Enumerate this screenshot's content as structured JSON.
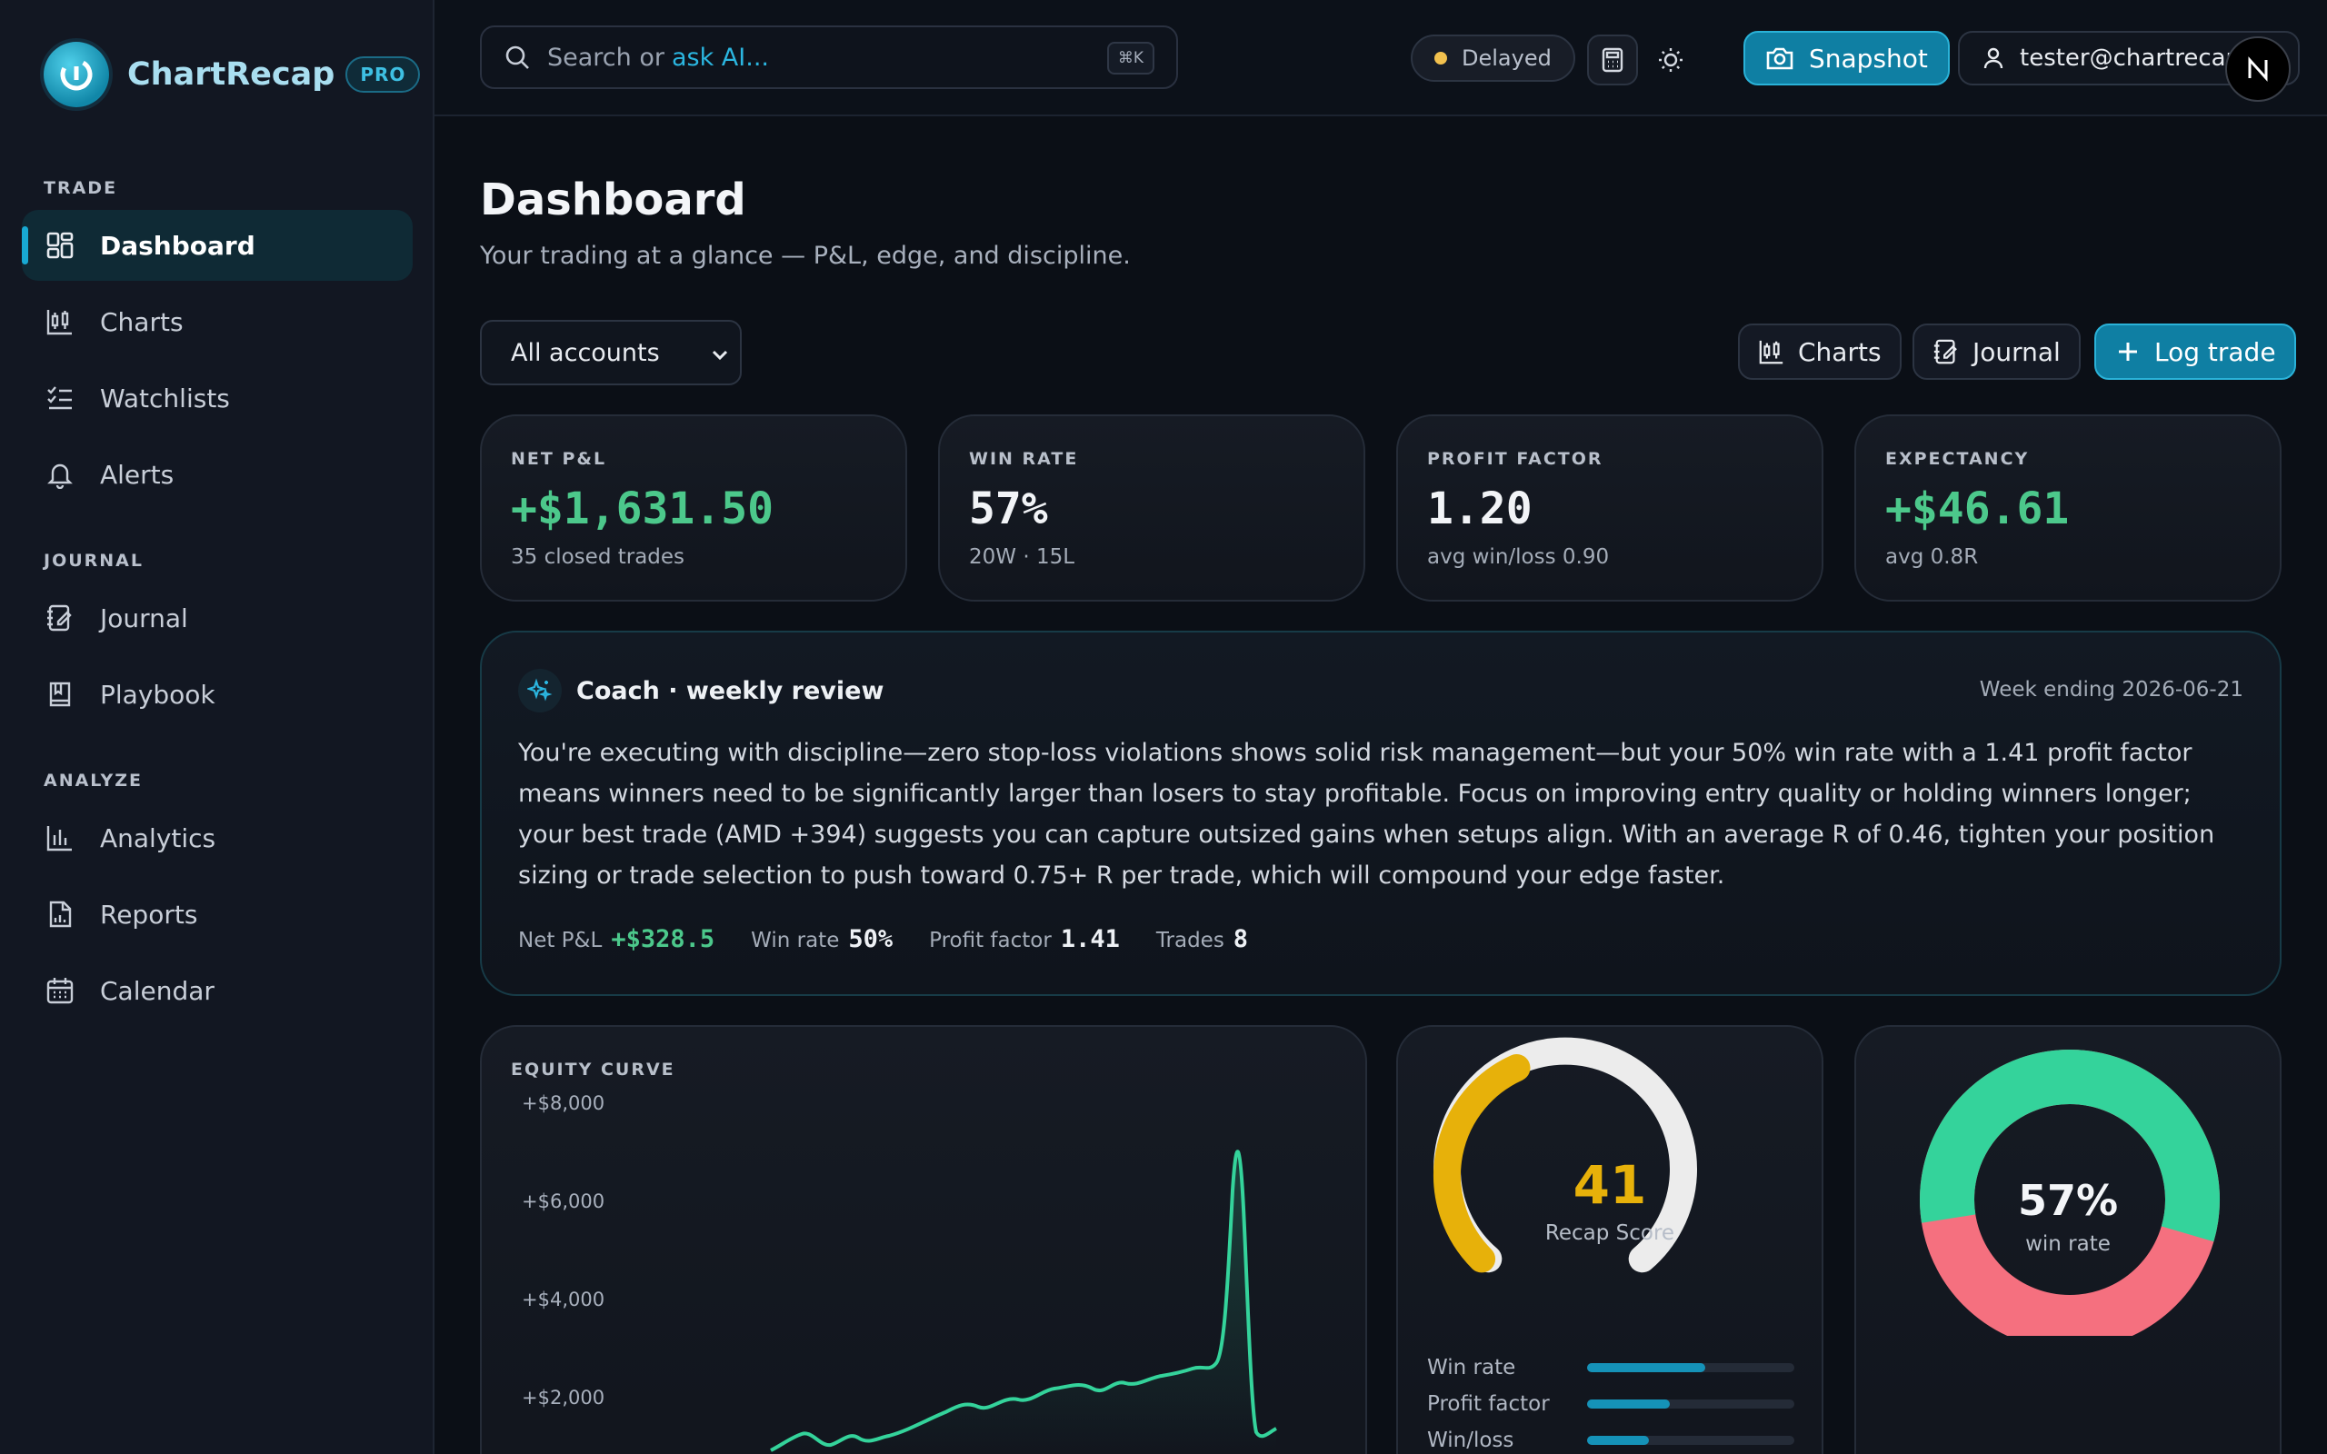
{
  "brand": {
    "name": "ChartRecap",
    "badge": "PRO"
  },
  "sidebar": {
    "sections": [
      {
        "title": "TRADE",
        "items": [
          {
            "label": "Dashboard",
            "icon": "dashboard-icon",
            "active": true
          },
          {
            "label": "Charts",
            "icon": "candlestick-icon"
          },
          {
            "label": "Watchlists",
            "icon": "checklist-icon"
          },
          {
            "label": "Alerts",
            "icon": "bell-icon"
          }
        ]
      },
      {
        "title": "JOURNAL",
        "items": [
          {
            "label": "Journal",
            "icon": "notebook-icon"
          },
          {
            "label": "Playbook",
            "icon": "book-icon"
          }
        ]
      },
      {
        "title": "ANALYZE",
        "items": [
          {
            "label": "Analytics",
            "icon": "bar-chart-icon"
          },
          {
            "label": "Reports",
            "icon": "report-icon"
          },
          {
            "label": "Calendar",
            "icon": "calendar-icon"
          }
        ]
      }
    ]
  },
  "topbar": {
    "search_prefix": "Search or",
    "search_ai": "ask AI...",
    "search_shortcut": "⌘K",
    "status": "Delayed",
    "snapshot_label": "Snapshot",
    "user_email": "tester@chartrecap.io",
    "avatar_letter": "N"
  },
  "page": {
    "title": "Dashboard",
    "subtitle": "Your trading at a glance — P&L, edge, and discipline.",
    "account_select": "All accounts",
    "actions": {
      "charts": "Charts",
      "journal": "Journal",
      "log_trade": "Log trade"
    }
  },
  "kpis": [
    {
      "label": "NET P&L",
      "value": "+$1,631.50",
      "sub": "35 closed trades",
      "positive": true
    },
    {
      "label": "WIN RATE",
      "value": "57%",
      "sub": "20W · 15L",
      "positive": false
    },
    {
      "label": "PROFIT FACTOR",
      "value": "1.20",
      "sub": "avg win/loss 0.90",
      "positive": false
    },
    {
      "label": "EXPECTANCY",
      "value": "+$46.61",
      "sub": "avg 0.8R",
      "positive": true
    }
  ],
  "coach": {
    "title": "Coach · weekly review",
    "week": "Week ending 2026-06-21",
    "body": "You're executing with discipline—zero stop-loss violations shows solid risk management—but your 50% win rate with a 1.41 profit factor means winners need to be significantly larger than losers to stay profitable. Focus on improving entry quality or holding winners longer; your best trade (AMD +394) suggests you can capture outsized gains when setups align. With an average R of 0.46, tighten your position sizing or trade selection to push toward 0.75+ R per trade, which will compound your edge faster.",
    "stats": {
      "net_pnl_label": "Net P&L",
      "net_pnl": "+$328.5",
      "win_rate_label": "Win rate",
      "win_rate": "50%",
      "pf_label": "Profit factor",
      "pf": "1.41",
      "trades_label": "Trades",
      "trades": "8"
    }
  },
  "equity": {
    "label": "EQUITY CURVE",
    "ticks": [
      "+$8,000",
      "+$6,000",
      "+$4,000",
      "+$2,000"
    ],
    "line_color": "#34d39b"
  },
  "score": {
    "value": "41",
    "label": "Recap Score",
    "fraction": 0.41,
    "color": "#e7b10a",
    "metrics": [
      {
        "label": "Win rate",
        "fraction": 0.57
      },
      {
        "label": "Profit factor",
        "fraction": 0.4
      },
      {
        "label": "Win/loss",
        "fraction": 0.3
      }
    ]
  },
  "winrate_donut": {
    "value": "57%",
    "label": "win rate",
    "win_fraction": 0.57,
    "win_color": "#34d39b",
    "loss_color": "#f5707f"
  }
}
